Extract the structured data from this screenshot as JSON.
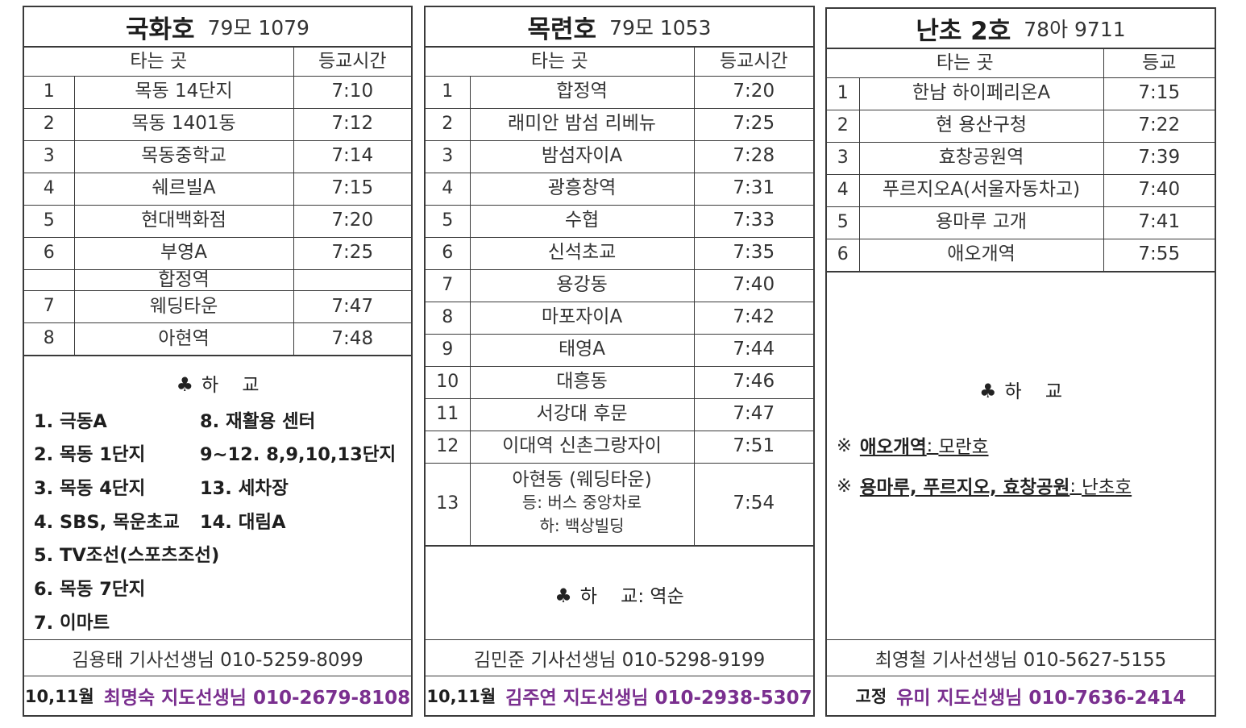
{
  "col_stop": "타는 곳",
  "col_time": "등교시간",
  "col_time_short": "등교",
  "return_label": "하    교",
  "club_symbol": "♣",
  "buses": [
    {
      "name": "국화호",
      "plate": "79모 1079",
      "stops": [
        {
          "no": "1",
          "stop": "목동 14단지",
          "time": "7:10"
        },
        {
          "no": "2",
          "stop": "목동 1401동",
          "time": "7:12"
        },
        {
          "no": "3",
          "stop": "목동중학교",
          "time": "7:14"
        },
        {
          "no": "4",
          "stop": "쉐르빌A",
          "time": "7:15"
        },
        {
          "no": "5",
          "stop": "현대백화점",
          "time": "7:20"
        },
        {
          "no": "6",
          "stop": "부영A",
          "time": "7:25"
        },
        {
          "no": "",
          "stop": "합정역",
          "time": ""
        },
        {
          "no": "7",
          "stop": "웨딩타운",
          "time": "7:47"
        },
        {
          "no": "8",
          "stop": "아현역",
          "time": "7:48"
        }
      ],
      "return_left": [
        "1. 극동A",
        "2. 목동 1단지",
        "3. 목동 4단지",
        "4. SBS, 목운초교",
        "5. TV조선(스포츠조선)",
        "6. 목동 7단지",
        "7. 이마트"
      ],
      "return_right": [
        "8. 재활용 센터",
        "9~12. 8,9,10,13단지",
        "13. 세차장",
        "14. 대림A",
        "",
        "",
        ""
      ],
      "driver": "김용태 기사선생님 010-5259-8099",
      "teacher_period": "10,11월",
      "teacher": "최명숙 지도선생님 010-2679-8108"
    },
    {
      "name": "목련호",
      "plate": "79모 1053",
      "stops": [
        {
          "no": "1",
          "stop": "합정역",
          "time": "7:20"
        },
        {
          "no": "2",
          "stop": "래미안 밤섬 리베뉴",
          "time": "7:25"
        },
        {
          "no": "3",
          "stop": "밤섬자이A",
          "time": "7:28"
        },
        {
          "no": "4",
          "stop": "광흥창역",
          "time": "7:31"
        },
        {
          "no": "5",
          "stop": "수협",
          "time": "7:33"
        },
        {
          "no": "6",
          "stop": "신석초교",
          "time": "7:35"
        },
        {
          "no": "7",
          "stop": "용강동",
          "time": "7:40"
        },
        {
          "no": "8",
          "stop": "마포자이A",
          "time": "7:42"
        },
        {
          "no": "9",
          "stop": "태영A",
          "time": "7:44"
        },
        {
          "no": "10",
          "stop": "대흥동",
          "time": "7:46"
        },
        {
          "no": "11",
          "stop": "서강대 후문",
          "time": "7:47"
        },
        {
          "no": "12",
          "stop": "이대역 신촌그랑자이",
          "time": "7:51"
        },
        {
          "no": "13",
          "stop": "아현동 (웨딩타운)",
          "sub1": "등: 버스 중앙차로",
          "sub2": "하: 백상빌딩",
          "time": "7:54"
        }
      ],
      "return_text": "하    교: 역순",
      "driver": "김민준 기사선생님 010-5298-9199",
      "teacher_period": "10,11월",
      "teacher": "김주연 지도선생님 010-2938-5307"
    },
    {
      "name": "난초 2호",
      "plate": "78아 9711",
      "stops": [
        {
          "no": "1",
          "stop": "한남 하이페리온A",
          "time": "7:15"
        },
        {
          "no": "2",
          "stop": "현 용산구청",
          "time": "7:22"
        },
        {
          "no": "3",
          "stop": "효창공원역",
          "time": "7:39"
        },
        {
          "no": "4",
          "stop": "푸르지오A(서울자동차고)",
          "time": "7:40"
        },
        {
          "no": "5",
          "stop": "용마루 고개",
          "time": "7:41"
        },
        {
          "no": "6",
          "stop": "애오개역",
          "time": "7:55"
        }
      ],
      "notes": [
        {
          "mark": "※",
          "place": "애오개역",
          "bus": "모란호"
        },
        {
          "mark": "※",
          "place": "용마루, 푸르지오, 효창공원",
          "bus": "난초호"
        }
      ],
      "driver": "최영철 기사선생님 010-5627-5155",
      "teacher_period": "고정",
      "teacher": "유미 지도선생님 010-7636-2414"
    }
  ]
}
